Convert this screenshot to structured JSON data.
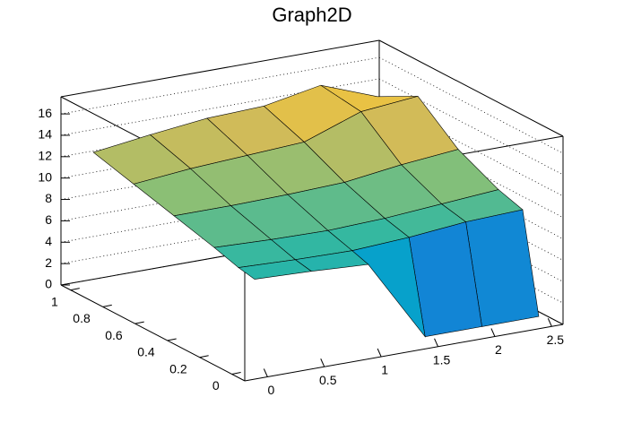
{
  "chart_data": {
    "type": "surface",
    "title": "Graph2D",
    "x": [
      0,
      0.5,
      1,
      1.5,
      2,
      2.5
    ],
    "y": [
      0,
      0.1,
      0.25,
      0.5,
      0.75,
      1
    ],
    "z": [
      [
        8.5,
        8.3,
        8,
        0.3,
        0.3,
        0.3
      ],
      [
        8.8,
        8.6,
        8.5,
        8.8,
        9.3,
        9.5
      ],
      [
        9.5,
        9.3,
        9.2,
        9.4,
        9.8,
        10.2
      ],
      [
        10.5,
        10.5,
        10.6,
        10.8,
        11.5,
        12
      ],
      [
        11.5,
        12,
        12.3,
        12.6,
        14.5,
        15
      ],
      [
        12.5,
        13.2,
        13.8,
        14,
        15,
        13
      ]
    ],
    "xlim": [
      -0.2,
      2.6
    ],
    "xticks": [
      0,
      0.5,
      1,
      1.5,
      2,
      2.5
    ],
    "ylim": [
      -0.08,
      1.06
    ],
    "yticks": [
      0,
      0.2,
      0.4,
      0.6,
      0.8,
      1
    ],
    "zlim": [
      0,
      17.6
    ],
    "zticks": [
      0,
      2,
      4,
      6,
      8,
      10,
      12,
      14,
      16
    ],
    "grid": true,
    "palette": [
      "#352a87",
      "#0f5cdd",
      "#1481d6",
      "#06a4ca",
      "#2eb7a4",
      "#87bf77",
      "#d1bb59",
      "#fec832",
      "#f9fb0e"
    ]
  }
}
